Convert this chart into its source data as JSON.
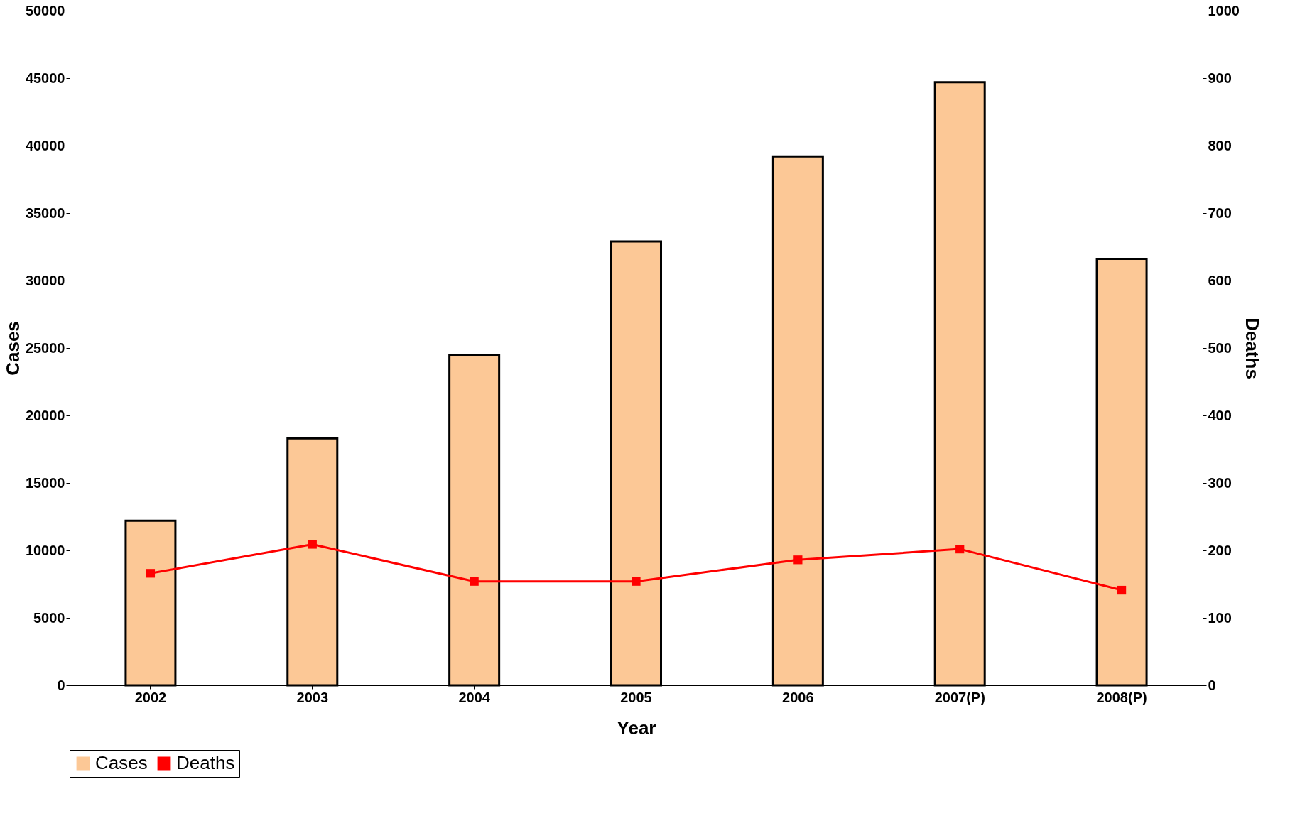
{
  "chart_data": {
    "type": "bar",
    "xlabel": "Year",
    "ylabel": "Cases",
    "y2label": "Deaths",
    "categories": [
      "2002",
      "2003",
      "2004",
      "2005",
      "2006",
      "2007(P)",
      "2008(P)"
    ],
    "series": [
      {
        "name": "Cases",
        "color": "#fcc896",
        "values": [
          12200,
          18300,
          24500,
          32900,
          39200,
          44700,
          31600
        ]
      },
      {
        "name": "Deaths",
        "type": "line",
        "axis": "y2",
        "color": "#ff0000",
        "marker": "square",
        "values": [
          166,
          209,
          154,
          154,
          186,
          202,
          141
        ]
      }
    ],
    "ylim": [
      0,
      50000
    ],
    "yticks": [
      0,
      5000,
      10000,
      15000,
      20000,
      25000,
      30000,
      35000,
      40000,
      45000,
      50000
    ],
    "y2lim": [
      0,
      1000
    ],
    "y2ticks": [
      0,
      100,
      200,
      300,
      400,
      500,
      600,
      700,
      800,
      900,
      1000
    ],
    "grid": false,
    "legend": "bottom"
  }
}
